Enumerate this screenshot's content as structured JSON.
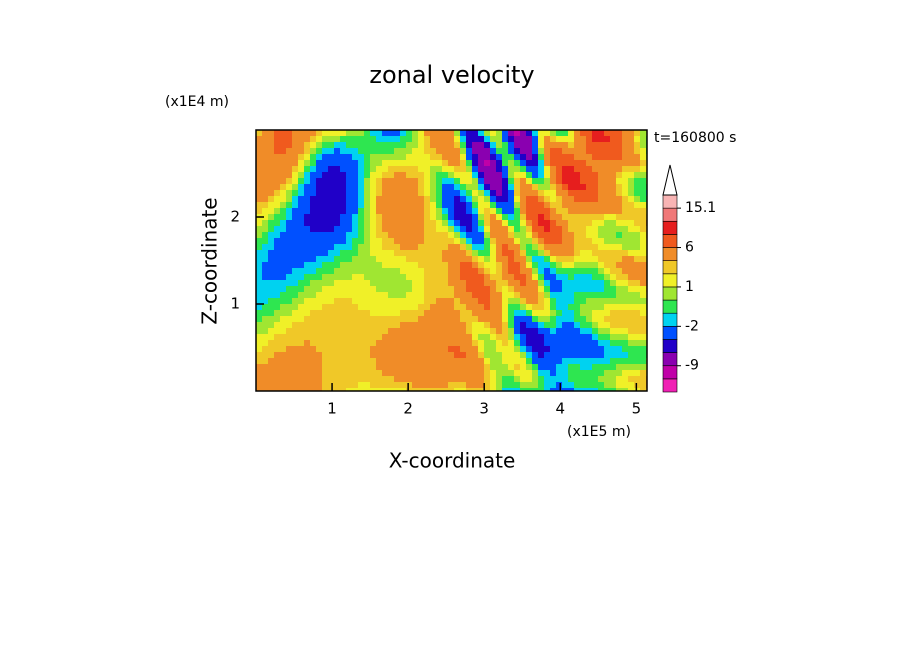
{
  "chart_data": {
    "type": "contour",
    "title": "zonal velocity",
    "x_label": "X-coordinate",
    "y_label": "Z-coordinate",
    "x_unit": "(x1E5 m)",
    "y_unit": "(x1E4 m)",
    "annotation": "t=160800 s",
    "xlim": [
      0,
      5.14
    ],
    "xticks": [
      1,
      2,
      3,
      4,
      5
    ],
    "ylim": [
      0,
      3.0
    ],
    "yticks": [
      1,
      2
    ],
    "colorbar": {
      "levels": [
        -12,
        -9,
        -6,
        -4,
        -2,
        -1,
        0,
        1,
        2,
        3,
        6,
        9,
        12,
        15.1
      ],
      "colors": [
        "#f020b4",
        "#c000a8",
        "#8a00b0",
        "#2000c8",
        "#0050ff",
        "#00d2f0",
        "#2ee650",
        "#a0e632",
        "#f0f028",
        "#f0c828",
        "#f08c28",
        "#f05a1e",
        "#e61e1e",
        "#f07878",
        "#f8b4b4"
      ],
      "ticks": [
        15.1,
        6,
        1,
        -2,
        -9
      ]
    }
  }
}
